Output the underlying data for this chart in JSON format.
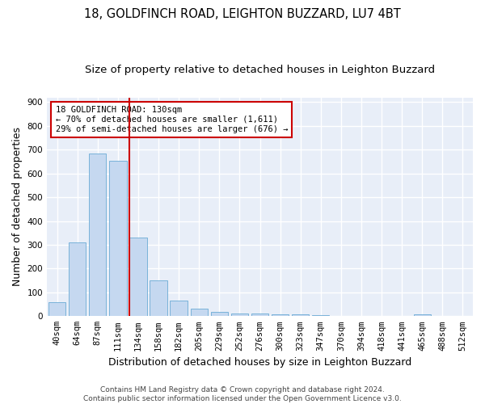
{
  "title1": "18, GOLDFINCH ROAD, LEIGHTON BUZZARD, LU7 4BT",
  "title2": "Size of property relative to detached houses in Leighton Buzzard",
  "xlabel": "Distribution of detached houses by size in Leighton Buzzard",
  "ylabel": "Number of detached properties",
  "categories": [
    "40sqm",
    "64sqm",
    "87sqm",
    "111sqm",
    "134sqm",
    "158sqm",
    "182sqm",
    "205sqm",
    "229sqm",
    "252sqm",
    "276sqm",
    "300sqm",
    "323sqm",
    "347sqm",
    "370sqm",
    "394sqm",
    "418sqm",
    "441sqm",
    "465sqm",
    "488sqm",
    "512sqm"
  ],
  "values": [
    60,
    310,
    685,
    655,
    330,
    150,
    65,
    30,
    18,
    12,
    10,
    8,
    7,
    6,
    0,
    0,
    0,
    0,
    8,
    0,
    0
  ],
  "bar_color": "#c5d8f0",
  "bar_edge_color": "#6aaad4",
  "vline_x": 3.57,
  "vline_color": "#cc0000",
  "annotation_line1": "18 GOLDFINCH ROAD: 130sqm",
  "annotation_line2": "← 70% of detached houses are smaller (1,611)",
  "annotation_line3": "29% of semi-detached houses are larger (676) →",
  "annotation_box_color": "#ffffff",
  "annotation_box_edge": "#cc0000",
  "ylim": [
    0,
    920
  ],
  "yticks": [
    0,
    100,
    200,
    300,
    400,
    500,
    600,
    700,
    800,
    900
  ],
  "footnote": "Contains HM Land Registry data © Crown copyright and database right 2024.\nContains public sector information licensed under the Open Government Licence v3.0.",
  "bg_color": "#ffffff",
  "plot_bg_color": "#e8eef8",
  "grid_color": "#ffffff",
  "title_fontsize": 10.5,
  "subtitle_fontsize": 9.5,
  "tick_fontsize": 7.5,
  "label_fontsize": 9,
  "footnote_fontsize": 6.5
}
